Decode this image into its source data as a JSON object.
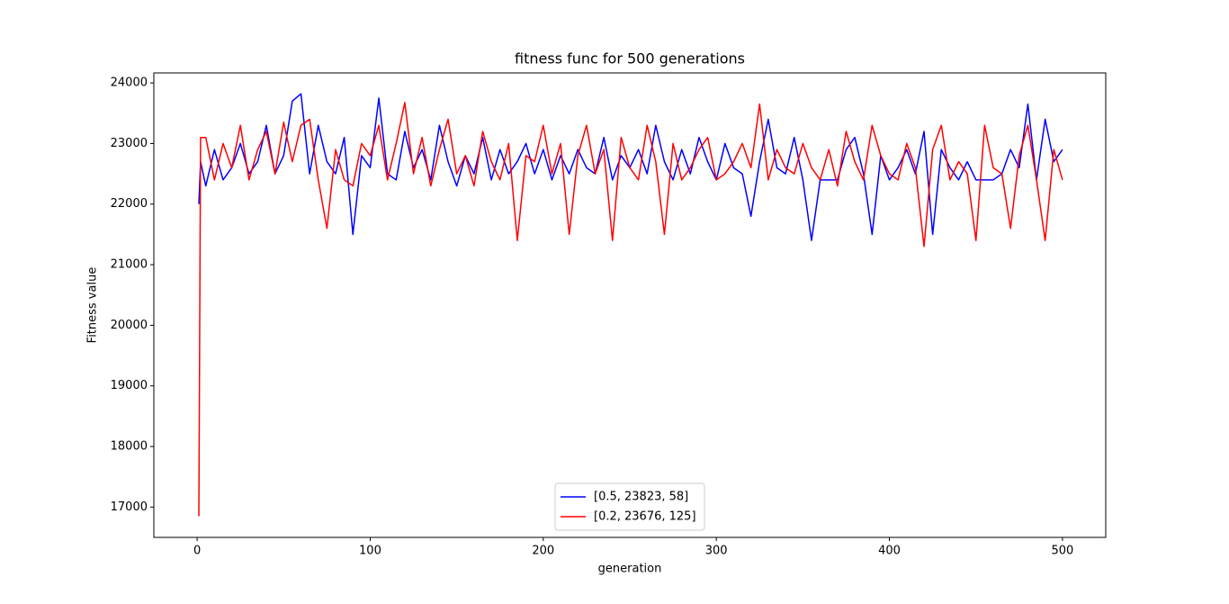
{
  "chart_data": {
    "type": "line",
    "title": "fitness func for 500 generations",
    "x_label": "generation",
    "y_label": "Fitness value",
    "x": [
      1,
      2,
      5,
      10,
      15,
      20,
      25,
      30,
      35,
      40,
      45,
      50,
      55,
      60,
      65,
      70,
      75,
      80,
      85,
      90,
      95,
      100,
      105,
      110,
      115,
      120,
      125,
      130,
      135,
      140,
      145,
      150,
      155,
      160,
      165,
      170,
      175,
      180,
      185,
      190,
      195,
      200,
      205,
      210,
      215,
      220,
      225,
      230,
      235,
      240,
      245,
      250,
      255,
      260,
      265,
      270,
      275,
      280,
      285,
      290,
      295,
      300,
      305,
      310,
      315,
      320,
      325,
      330,
      335,
      340,
      345,
      350,
      355,
      360,
      365,
      370,
      375,
      380,
      385,
      390,
      395,
      400,
      405,
      410,
      415,
      420,
      425,
      430,
      435,
      440,
      445,
      450,
      455,
      460,
      465,
      470,
      475,
      480,
      485,
      490,
      495,
      500
    ],
    "series": [
      {
        "name": "[0.5, 23823, 58]",
        "color": "#0000ff",
        "values": [
          22000,
          22700,
          22300,
          22900,
          22400,
          22600,
          23000,
          22500,
          22700,
          23300,
          22500,
          22800,
          23700,
          23820,
          22500,
          23300,
          22700,
          22500,
          23100,
          21500,
          22800,
          22600,
          23750,
          22500,
          22400,
          23200,
          22600,
          22900,
          22400,
          23300,
          22700,
          22300,
          22800,
          22500,
          23100,
          22400,
          22900,
          22500,
          22700,
          23000,
          22500,
          22900,
          22400,
          22800,
          22500,
          22900,
          22600,
          22500,
          23100,
          22400,
          22800,
          22600,
          22900,
          22500,
          23300,
          22700,
          22400,
          22900,
          22500,
          23100,
          22700,
          22400,
          23000,
          22600,
          22500,
          21800,
          22700,
          23400,
          22600,
          22500,
          23100,
          22400,
          21400,
          22400,
          22400,
          22400,
          22900,
          23100,
          22500,
          21500,
          22800,
          22400,
          22600,
          22900,
          22500,
          23200,
          21500,
          22900,
          22600,
          22400,
          22700,
          22400,
          22400,
          22400,
          22500,
          22900,
          22600,
          23650,
          22400,
          23400,
          22700,
          22900
        ]
      },
      {
        "name": "[0.2, 23676, 125]",
        "color": "#ff0000",
        "values": [
          16850,
          23100,
          23100,
          22400,
          23000,
          22600,
          23300,
          22400,
          22900,
          23200,
          22500,
          23350,
          22700,
          23300,
          23400,
          22400,
          21600,
          22900,
          22400,
          22300,
          23000,
          22800,
          23300,
          22400,
          23000,
          23676,
          22500,
          23100,
          22300,
          22900,
          23400,
          22500,
          22800,
          22300,
          23200,
          22700,
          22400,
          23000,
          21400,
          22800,
          22700,
          23300,
          22500,
          23000,
          21500,
          22800,
          23300,
          22500,
          22900,
          21400,
          23100,
          22600,
          22400,
          23300,
          22700,
          21500,
          23000,
          22400,
          22600,
          22900,
          23100,
          22400,
          22500,
          22700,
          23000,
          22600,
          23650,
          22400,
          22900,
          22600,
          22500,
          23000,
          22600,
          22400,
          22900,
          22300,
          23200,
          22700,
          22400,
          23300,
          22800,
          22500,
          22400,
          23000,
          22600,
          21300,
          22900,
          23300,
          22400,
          22700,
          22500,
          21400,
          23300,
          22600,
          22500,
          21600,
          22800,
          23300,
          22400,
          21400,
          22900,
          22400
        ]
      }
    ],
    "xlim": [
      -25,
      525
    ],
    "ylim": [
      16500,
      24165
    ],
    "xticks": [
      0,
      100,
      200,
      300,
      400,
      500
    ],
    "yticks": [
      17000,
      18000,
      19000,
      20000,
      21000,
      22000,
      23000,
      24000
    ],
    "grid": false,
    "legend": "lower center"
  }
}
